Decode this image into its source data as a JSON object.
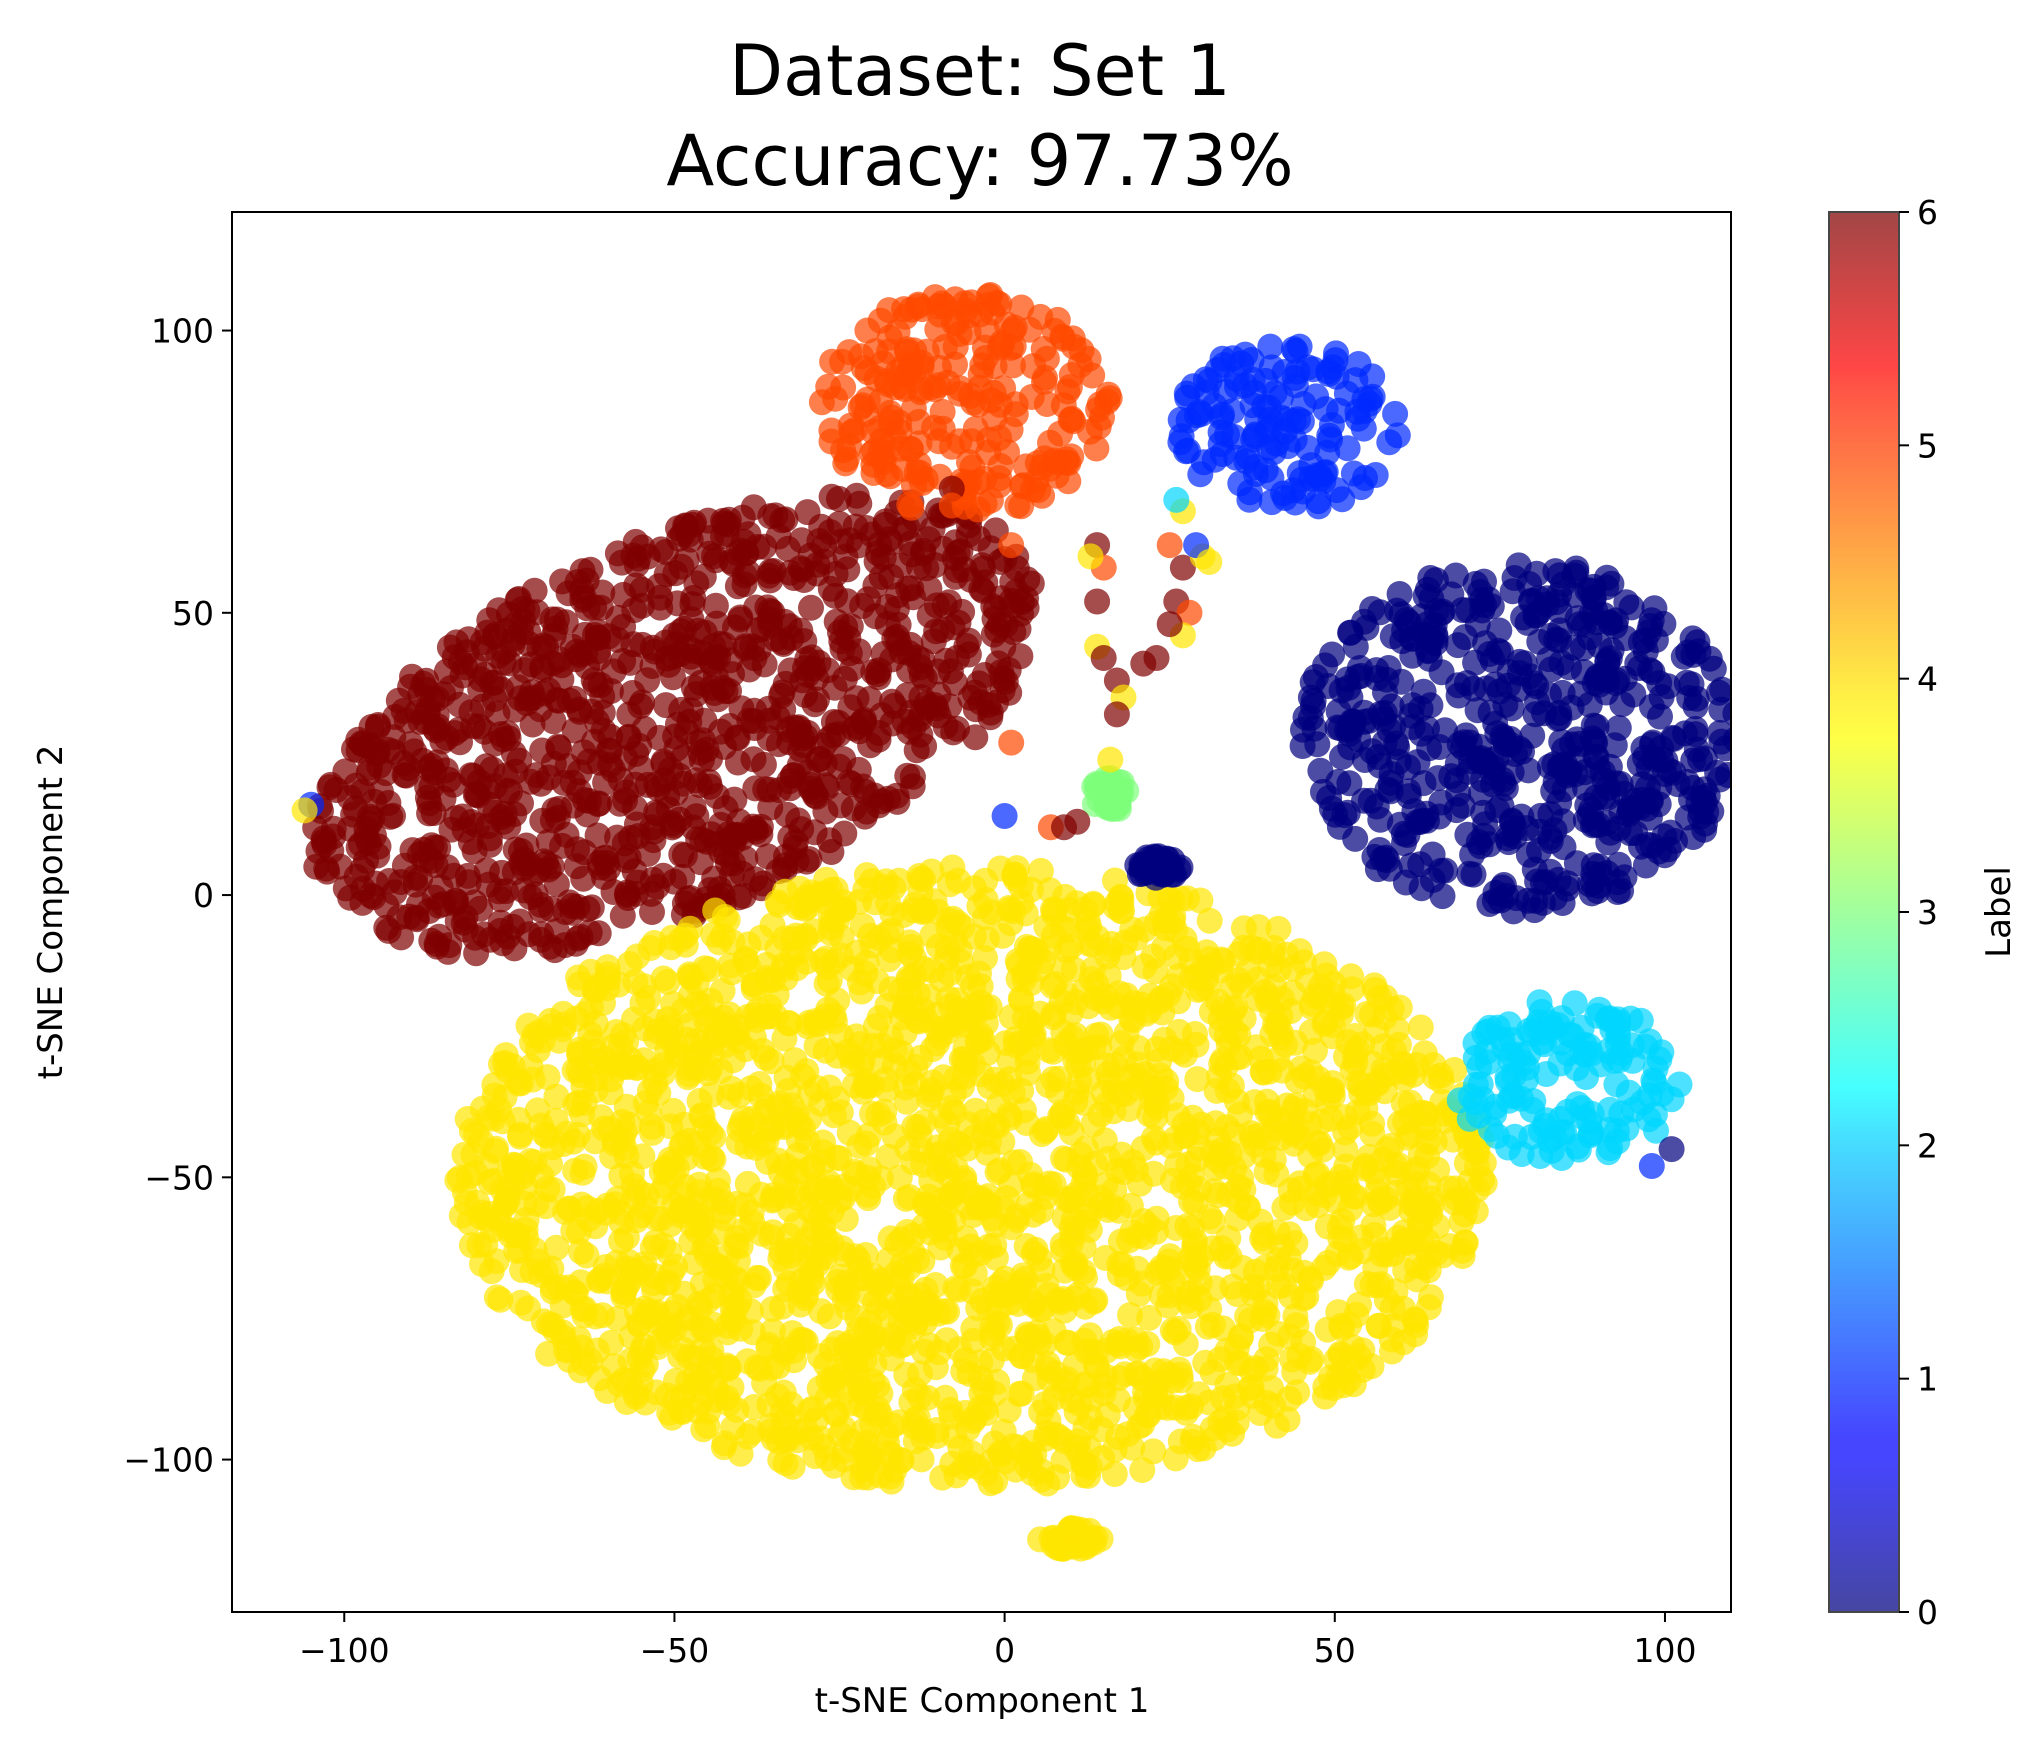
{
  "chart_data": {
    "type": "scatter",
    "title": "Dataset: Set 1",
    "subtitle": "Accuracy: 97.73%",
    "xlabel": "t-SNE Component 1",
    "ylabel": "t-SNE Component 2",
    "xlim": [
      -117,
      110
    ],
    "ylim": [
      -127,
      121
    ],
    "xticks": [
      -100,
      -50,
      0,
      50,
      100
    ],
    "yticks": [
      -100,
      -50,
      0,
      50,
      100
    ],
    "xtick_labels": [
      "−100",
      "−50",
      "0",
      "50",
      "100"
    ],
    "ytick_labels": [
      "−100",
      "−50",
      "0",
      "50",
      "100"
    ],
    "grid": false,
    "colormap": "jet",
    "colorbar": {
      "label": "Label",
      "min": 0,
      "max": 6,
      "ticks": [
        0,
        1,
        2,
        3,
        4,
        5,
        6
      ],
      "tick_labels": [
        "0",
        "1",
        "2",
        "3",
        "4",
        "5",
        "6"
      ]
    },
    "marker_alpha": 0.7,
    "clusters": [
      {
        "label": 0,
        "color": "#00007f",
        "center": [
          78,
          28
        ],
        "spread": [
          33,
          31
        ],
        "shape": "blob"
      },
      {
        "label": 6,
        "color": "#7f0000",
        "center": [
          -50,
          30
        ],
        "spread": [
          55,
          35
        ],
        "shape": "parallelogram"
      },
      {
        "label": 4,
        "color": "#ffe500",
        "center": [
          -5,
          -50
        ],
        "spread": [
          78,
          55
        ],
        "shape": "blob"
      },
      {
        "label": 5,
        "color": "#ff4800",
        "center": [
          -6,
          87
        ],
        "spread": [
          22,
          20
        ],
        "shape": "blob"
      },
      {
        "label": 1,
        "color": "#0029ff",
        "center": [
          43,
          83
        ],
        "spread": [
          17,
          15
        ],
        "shape": "blob"
      },
      {
        "label": 2,
        "color": "#00d5ff",
        "center": [
          85,
          -33
        ],
        "spread": [
          18,
          14
        ],
        "shape": "blob"
      },
      {
        "label": 3,
        "color": "#7dff7a",
        "center": [
          16,
          18
        ],
        "spread": [
          3,
          3
        ],
        "shape": "blob"
      },
      {
        "label": 0,
        "color": "#00007f",
        "center": [
          23,
          5
        ],
        "spread": [
          4,
          2
        ],
        "shape": "blob"
      },
      {
        "label": 4,
        "color": "#ffe500",
        "center": [
          10,
          -114
        ],
        "spread": [
          5,
          2
        ],
        "shape": "blob"
      }
    ],
    "stray_points": [
      {
        "x": 14,
        "y": 62,
        "label": 6
      },
      {
        "x": 15,
        "y": 58,
        "label": 5
      },
      {
        "x": 13,
        "y": 60,
        "label": 4
      },
      {
        "x": 14,
        "y": 52,
        "label": 6
      },
      {
        "x": 14,
        "y": 44,
        "label": 4
      },
      {
        "x": 15,
        "y": 42,
        "label": 6
      },
      {
        "x": 17,
        "y": 38,
        "label": 6
      },
      {
        "x": 18,
        "y": 35,
        "label": 4
      },
      {
        "x": 17,
        "y": 32,
        "label": 6
      },
      {
        "x": 16,
        "y": 24,
        "label": 4
      },
      {
        "x": 25,
        "y": 62,
        "label": 5
      },
      {
        "x": 27,
        "y": 58,
        "label": 6
      },
      {
        "x": 26,
        "y": 52,
        "label": 6
      },
      {
        "x": 28,
        "y": 50,
        "label": 5
      },
      {
        "x": 27,
        "y": 46,
        "label": 4
      },
      {
        "x": 25,
        "y": 48,
        "label": 6
      },
      {
        "x": 23,
        "y": 42,
        "label": 6
      },
      {
        "x": 30,
        "y": 60,
        "label": 4
      },
      {
        "x": 29,
        "y": 62,
        "label": 1
      },
      {
        "x": 27,
        "y": 68,
        "label": 4
      },
      {
        "x": 26,
        "y": 70,
        "label": 2
      },
      {
        "x": 7,
        "y": 12,
        "label": 5
      },
      {
        "x": 9,
        "y": 12,
        "label": 6
      },
      {
        "x": 11,
        "y": 13,
        "label": 6
      },
      {
        "x": 0,
        "y": 14,
        "label": 1
      },
      {
        "x": 1,
        "y": 62,
        "label": 5
      },
      {
        "x": -8,
        "y": 72,
        "label": 6
      },
      {
        "x": -8,
        "y": 69,
        "label": 5
      },
      {
        "x": 1,
        "y": 27,
        "label": 5
      },
      {
        "x": -105,
        "y": 16,
        "label": 1
      },
      {
        "x": -106,
        "y": 15,
        "label": 4
      },
      {
        "x": 81,
        "y": -19,
        "label": 2
      },
      {
        "x": 98,
        "y": -48,
        "label": 1
      },
      {
        "x": 101,
        "y": -45,
        "label": 0
      },
      {
        "x": 31,
        "y": 59,
        "label": 4
      },
      {
        "x": 21,
        "y": 41,
        "label": 6
      }
    ]
  }
}
